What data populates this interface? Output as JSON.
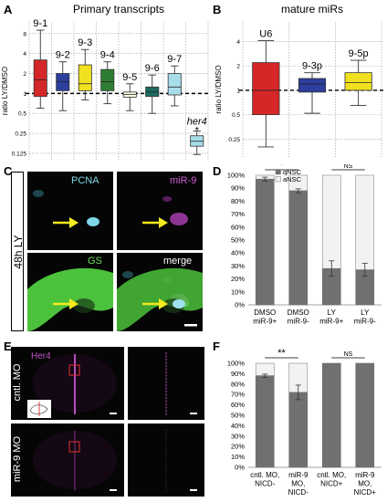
{
  "panels": {
    "A": "A",
    "B": "B",
    "C": "C",
    "D": "D",
    "E": "E",
    "F": "F"
  },
  "chart_data": [
    {
      "panel": "A",
      "type": "box",
      "title": "Primary transcripts",
      "xlabel": "",
      "ylabel": "ratio LY/DMSO",
      "scale": "log2",
      "ylim": [
        0.1,
        12
      ],
      "yticks": [
        "8",
        "4",
        "2",
        "1",
        "0.5",
        "0.25",
        "0.125"
      ],
      "ytick_values": [
        8,
        4,
        2,
        1,
        0.5,
        0.25,
        0.125
      ],
      "reference_line": 1,
      "grid": true,
      "boxes": [
        {
          "label": "9-1",
          "color": "#d62728",
          "whisker_low": 0.6,
          "q1": 0.9,
          "median": 1.6,
          "q3": 3.2,
          "whisker_high": 9.0
        },
        {
          "label": "9-2",
          "color": "#2c3e9e",
          "whisker_low": 0.55,
          "q1": 1.1,
          "median": 1.5,
          "q3": 2.0,
          "whisker_high": 3.0
        },
        {
          "label": "9-3",
          "color": "#f0e020",
          "whisker_low": 0.8,
          "q1": 1.1,
          "median": 1.4,
          "q3": 2.7,
          "whisker_high": 4.6
        },
        {
          "label": "9-4",
          "color": "#2e7d32",
          "whisker_low": 0.7,
          "q1": 1.1,
          "median": 1.5,
          "q3": 2.3,
          "whisker_high": 3.0
        },
        {
          "label": "9-5",
          "color": "#fffde0",
          "whisker_low": 0.55,
          "q1": 0.88,
          "median": 0.97,
          "q3": 1.05,
          "whisker_high": 1.4
        },
        {
          "label": "9-6",
          "color": "#1a6b5f",
          "whisker_low": 0.5,
          "q1": 0.9,
          "median": 1.05,
          "q3": 1.25,
          "whisker_high": 1.9
        },
        {
          "label": "9-7",
          "color": "#a8ddea",
          "whisker_low": 0.65,
          "q1": 0.95,
          "median": 1.25,
          "q3": 2.0,
          "whisker_high": 2.6
        },
        {
          "label": "her4",
          "color": "#a8ddea",
          "whisker_low": 0.12,
          "q1": 0.16,
          "median": 0.19,
          "q3": 0.23,
          "whisker_high": 0.27,
          "italic": true,
          "significance": "*"
        }
      ]
    },
    {
      "panel": "B",
      "type": "box",
      "title": "mature miRs",
      "xlabel": "",
      "ylabel": "ratio LY/DMSO",
      "scale": "log2",
      "ylim": [
        0.15,
        7
      ],
      "yticks": [
        "4",
        "2",
        "1",
        "0.5",
        "0.25"
      ],
      "ytick_values": [
        4,
        2,
        1,
        0.5,
        0.25
      ],
      "reference_line": 1,
      "grid": true,
      "boxes": [
        {
          "label": "U6",
          "color": "#d62728",
          "whisker_low": 0.2,
          "q1": 0.5,
          "median": 1.0,
          "q3": 2.2,
          "whisker_high": 4.1
        },
        {
          "label": "9-3p",
          "color": "#2c3e9e",
          "whisker_low": 0.52,
          "q1": 0.95,
          "median": 1.2,
          "q3": 1.4,
          "whisker_high": 1.65
        },
        {
          "label": "9-5p",
          "color": "#f0e020",
          "whisker_low": 0.65,
          "q1": 1.0,
          "median": 1.25,
          "q3": 1.65,
          "whisker_high": 2.35
        }
      ]
    },
    {
      "panel": "D",
      "type": "bar",
      "stacked": true,
      "percent": true,
      "legend": [
        "qNSC",
        "aNSC"
      ],
      "legend_colors": [
        "#707070",
        "#f2f2f2"
      ],
      "yticks": [
        "100%",
        "90%",
        "80%",
        "70%",
        "60%",
        "50%",
        "40%",
        "30%",
        "20%",
        "10%",
        "0%"
      ],
      "categories": [
        [
          "DMSO",
          "miR-9+"
        ],
        [
          "DMSO",
          "miR-9-"
        ],
        [
          "LY",
          "miR-9+"
        ],
        [
          "LY",
          "miR-9-"
        ]
      ],
      "series": [
        {
          "name": "qNSC",
          "values": [
            97,
            88,
            28,
            27
          ],
          "errors": [
            1.5,
            1.5,
            6,
            5
          ]
        },
        {
          "name": "aNSC",
          "values": [
            3,
            12,
            72,
            73
          ]
        }
      ],
      "brackets": [
        {
          "from": 0,
          "to": 1,
          "label": "*"
        },
        {
          "from": 2,
          "to": 3,
          "label": "NS"
        }
      ]
    },
    {
      "panel": "F",
      "type": "bar",
      "stacked": true,
      "percent": true,
      "legend": [],
      "yticks": [
        "100%",
        "90%",
        "80%",
        "70%",
        "60%",
        "50%",
        "40%",
        "30%",
        "20%",
        "10%",
        "0%"
      ],
      "categories": [
        [
          "cntl. MO,",
          "NICD-"
        ],
        [
          "miR-9",
          "MO,",
          "NICD-"
        ],
        [
          "cntl. MO,",
          "NICD+"
        ],
        [
          "miR-9",
          "MO,",
          "NICD+"
        ]
      ],
      "series": [
        {
          "name": "qNSC",
          "values": [
            88,
            72,
            100,
            100
          ],
          "errors": [
            1.5,
            7,
            0,
            0
          ]
        },
        {
          "name": "aNSC",
          "values": [
            12,
            28,
            0,
            0
          ]
        }
      ],
      "brackets": [
        {
          "from": 0,
          "to": 1,
          "label": "**"
        },
        {
          "from": 2,
          "to": 3,
          "label": "NS"
        }
      ]
    }
  ],
  "images": {
    "C": {
      "side_label": "48h LY",
      "channels": [
        {
          "label": "PCNA",
          "color": "#7fd6e6"
        },
        {
          "label": "miR-9",
          "color": "#d05bd6"
        },
        {
          "label": "GS",
          "color": "#6fdc5a"
        },
        {
          "label": "merge",
          "color": "#ffffff"
        }
      ],
      "arrow_color": "#f4ea1c"
    },
    "E": {
      "stain": "Her4",
      "stain_color": "#c050c8",
      "rows": [
        "cntl. MO",
        "miR-9 MO"
      ]
    }
  }
}
